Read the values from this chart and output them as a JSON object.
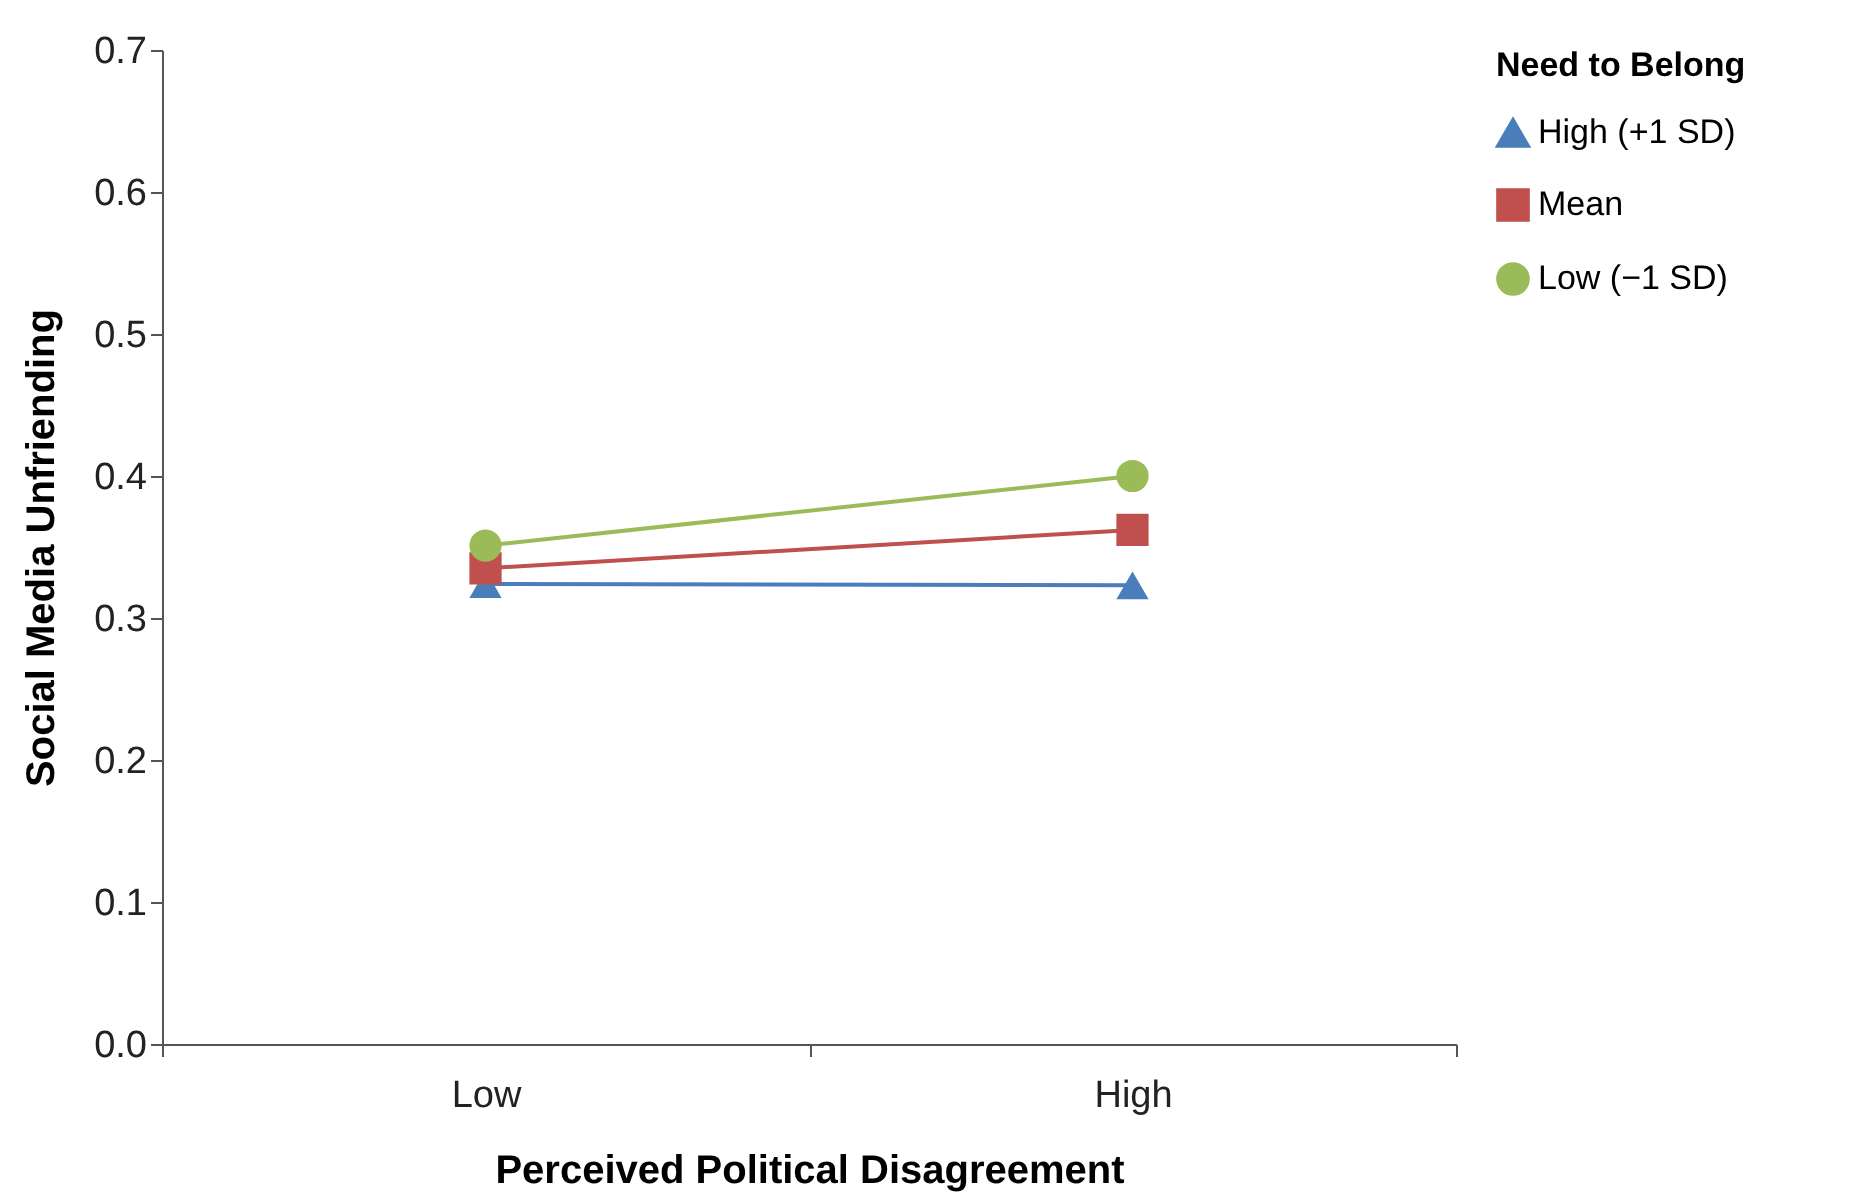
{
  "chart_data": {
    "type": "line",
    "xlabel": "Perceived Political Disagreement",
    "ylabel": "Social Media Unfriending",
    "legend_title": "Need to Belong",
    "categories": [
      "Low",
      "High"
    ],
    "series": [
      {
        "name": "High (+1 SD)",
        "color": "#4a7ebb",
        "marker": "triangle",
        "values": [
          0.324,
          0.323
        ]
      },
      {
        "name": "Mean",
        "color": "#c0504d",
        "marker": "square",
        "values": [
          0.335,
          0.362
        ]
      },
      {
        "name": "Low (−1 SD)",
        "color": "#9bbb59",
        "marker": "circle",
        "values": [
          0.351,
          0.4
        ]
      }
    ],
    "ylim": [
      0,
      0.7
    ],
    "yticks": [
      {
        "value": 0,
        "label": "0.0"
      },
      {
        "value": 0.1,
        "label": "0.1"
      },
      {
        "value": 0.2,
        "label": "0.2"
      },
      {
        "value": 0.3,
        "label": "0.3"
      },
      {
        "value": 0.4,
        "label": "0.4"
      },
      {
        "value": 0.5,
        "label": "0.5"
      },
      {
        "value": 0.6,
        "label": "0.6"
      },
      {
        "value": 0.7,
        "label": "0.7"
      }
    ],
    "grid": false,
    "legend": "top right"
  }
}
